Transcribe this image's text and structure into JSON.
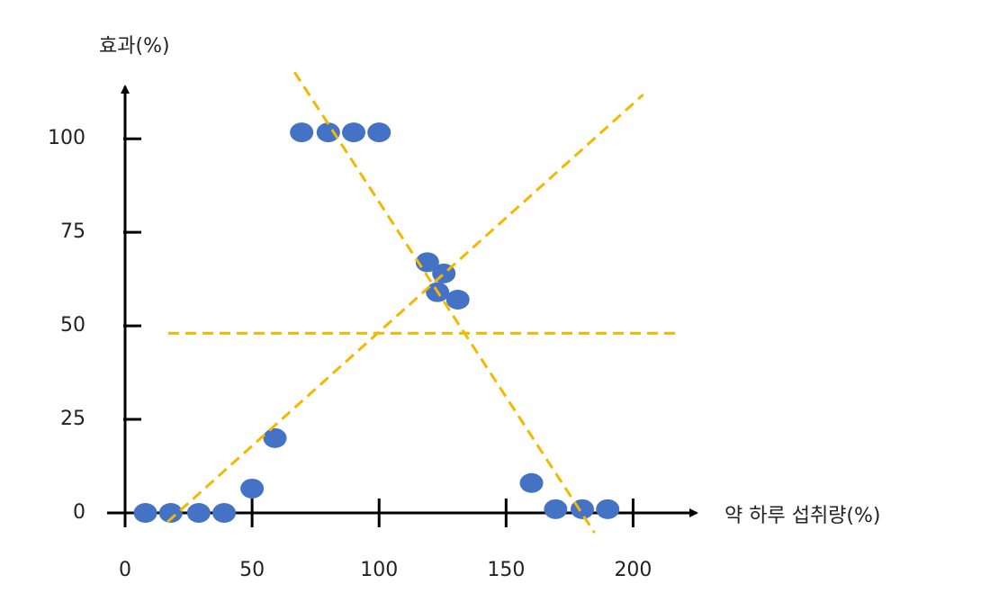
{
  "chart_data": {
    "type": "scatter",
    "x_label": "약 하루 섭취량(%)",
    "y_label": "효과(%)",
    "x": [
      8,
      18,
      29,
      39,
      50,
      59,
      69.5,
      80,
      90,
      100,
      119,
      125.5,
      123,
      131,
      160,
      169.5,
      180,
      190
    ],
    "values": [
      0,
      0,
      0,
      0,
      6.5,
      20,
      101.7,
      101.7,
      101.7,
      101.7,
      67,
      64,
      59,
      57,
      8,
      1,
      1,
      1
    ],
    "color": "#4472c4",
    "xlim": [
      0,
      225
    ],
    "ylim": [
      0,
      114
    ],
    "xticks": [
      0,
      50,
      100,
      150,
      200
    ],
    "yticks": [
      0,
      25,
      50,
      75,
      100
    ],
    "reference_lines": [
      {
        "x": [
          17,
          218
        ],
        "y": [
          48,
          48
        ]
      },
      {
        "x": [
          66.7,
          184.8
        ],
        "y": [
          117.8,
          -5.3
        ]
      },
      {
        "x": [
          16.7,
          204
        ],
        "y": [
          -2.4,
          111.8
        ]
      }
    ],
    "reference_color": "#f5b800"
  }
}
